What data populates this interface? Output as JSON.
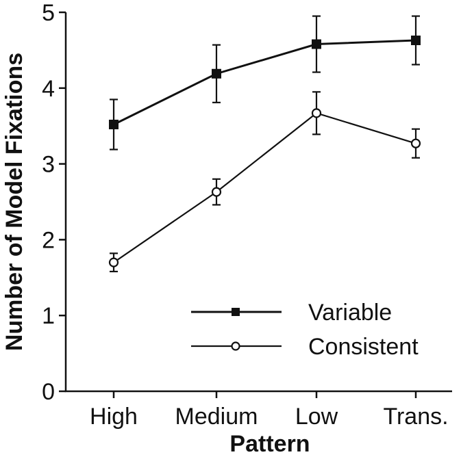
{
  "chart_data": {
    "type": "line",
    "xlabel": "Pattern",
    "ylabel": "Number of Model Fixations",
    "categories": [
      "High",
      "Medium",
      "Low",
      "Trans."
    ],
    "ylim": [
      0,
      5
    ],
    "yticks": [
      "0",
      "1",
      "2",
      "3",
      "4",
      "5"
    ],
    "grid": false,
    "legend_position": "lower-right",
    "error_bars": true,
    "series": [
      {
        "name": "Variable",
        "marker": "filled-square",
        "values": [
          3.52,
          4.19,
          4.58,
          4.63
        ],
        "error": [
          0.33,
          0.38,
          0.37,
          0.32
        ]
      },
      {
        "name": "Consistent",
        "marker": "open-circle",
        "values": [
          1.7,
          2.63,
          3.67,
          3.27
        ],
        "error": [
          0.12,
          0.17,
          0.28,
          0.19
        ]
      }
    ],
    "colors": {
      "line": "#111111",
      "open_marker_fill": "#ffffff"
    }
  }
}
